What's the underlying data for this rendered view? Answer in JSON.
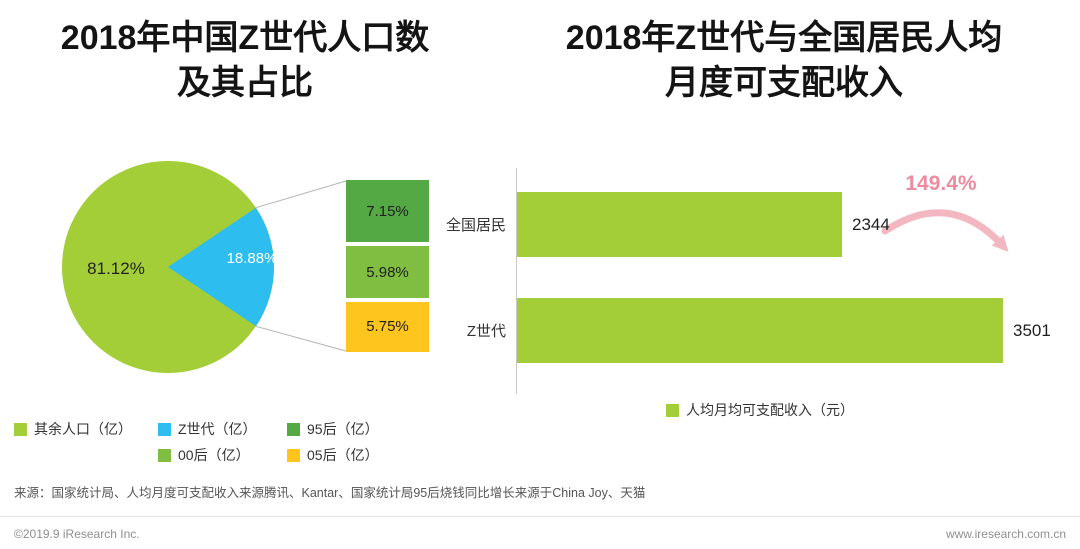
{
  "chart_data": [
    {
      "type": "pie",
      "title": "2018年中国Z世代人口数及其占比",
      "title_line1": "2018年中国Z世代人口数",
      "title_line2": "及其占比",
      "slices": [
        {
          "label": "其余人口（亿）",
          "value_pct": 81.12,
          "display": "81.12%",
          "color": "#a3ce38"
        },
        {
          "label": "Z世代（亿）",
          "value_pct": 18.88,
          "display": "18.88%",
          "color": "#2ebdef"
        }
      ],
      "breakdown": [
        {
          "label": "95后（亿）",
          "value_pct": 7.15,
          "display": "7.15%",
          "color": "#55a945"
        },
        {
          "label": "00后（亿）",
          "value_pct": 5.98,
          "display": "5.98%",
          "color": "#7fbe41"
        },
        {
          "label": "05后（亿）",
          "value_pct": 5.75,
          "display": "5.75%",
          "color": "#ffc51f"
        }
      ]
    },
    {
      "type": "bar",
      "orientation": "horizontal",
      "title": "2018年Z世代与全国居民人均月度可支配收入",
      "title_line1": "2018年Z世代与全国居民人均",
      "title_line2": "月度可支配收入",
      "categories": [
        "全国居民",
        "Z世代"
      ],
      "values": [
        2344,
        3501
      ],
      "xlim": [
        0,
        3600
      ],
      "bar_color": "#a3ce38",
      "annotation": {
        "text": "149.4%",
        "color": "#ee8b9e"
      },
      "legend": [
        {
          "label": "人均月均可支配收入（元）",
          "color": "#a3ce38"
        }
      ]
    }
  ],
  "footer": {
    "source": "来源：国家统计局、人均月度可支配收入来源腾讯、Kantar、国家统计局95后烧钱同比增长来源于China Joy、天猫",
    "copyright": "©2019.9 iResearch Inc.",
    "website": "www.iresearch.com.cn"
  }
}
